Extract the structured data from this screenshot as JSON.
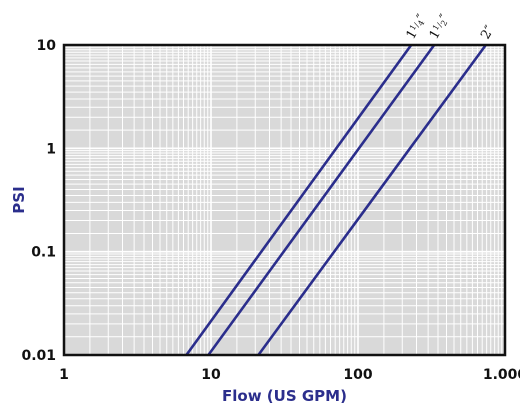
{
  "chart_data": {
    "type": "line",
    "title": "",
    "xlabel": "Flow (US GPM)",
    "ylabel": "PSI",
    "x_scale": "log",
    "y_scale": "log",
    "xlim": [
      1,
      1000
    ],
    "ylim": [
      0.01,
      10
    ],
    "x_ticks": [
      "1",
      "10",
      "100",
      "1.000"
    ],
    "y_ticks": [
      "0.01",
      "0.1",
      "1",
      "10"
    ],
    "grid": true,
    "plot_background": "#d9d9d9",
    "grid_color": "#ffffff",
    "line_color": "#2b2e8c",
    "label_color": "#2b2e8c",
    "series": [
      {
        "name": "1 1/4\"",
        "name_whole": "1",
        "name_num": "1",
        "name_den": "4",
        "name_mark": "″",
        "points": [
          [
            6.8,
            0.01
          ],
          [
            230,
            10
          ]
        ]
      },
      {
        "name": "1 1/2\"",
        "name_whole": "1",
        "name_num": "1",
        "name_den": "2",
        "name_mark": "″",
        "points": [
          [
            9.6,
            0.01
          ],
          [
            330,
            10
          ]
        ]
      },
      {
        "name": "2\"",
        "name_whole": "2",
        "name_mark": "″",
        "points": [
          [
            21,
            0.01
          ],
          [
            740,
            10
          ]
        ]
      }
    ]
  }
}
